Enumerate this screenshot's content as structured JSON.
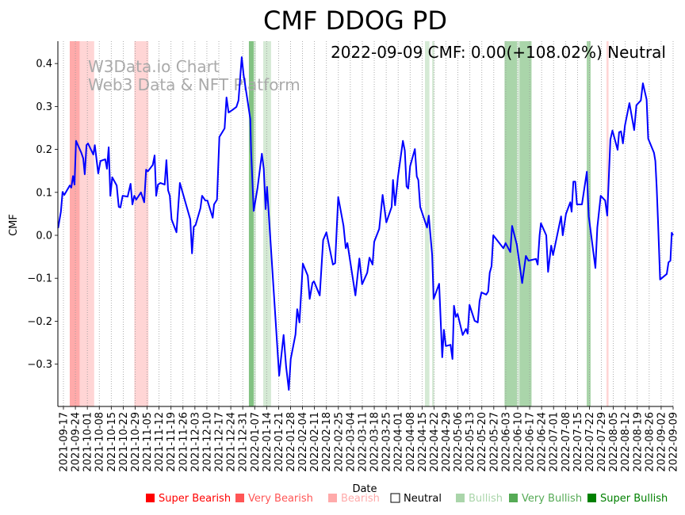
{
  "chart_data": {
    "type": "line",
    "title": "CMF DDOG PD",
    "annotation": "2022-09-09 CMF: 0.00(+108.02%) Neutral",
    "watermark": [
      "W3Data.io Chart",
      "Web3 Data & NFT Platform"
    ],
    "xlabel": "Date",
    "ylabel": "CMF",
    "x_unit": "days since 2021-09-17",
    "xlim": [
      -3.25,
      357
    ],
    "ylim": [
      -0.3985,
      0.452
    ],
    "yticks": [
      -0.3,
      -0.2,
      -0.1,
      0.0,
      0.1,
      0.2,
      0.3,
      0.4
    ],
    "ytick_labels": [
      "−0.3",
      "−0.2",
      "−0.1",
      "0.0",
      "0.1",
      "0.2",
      "0.3",
      "0.4"
    ],
    "xtick_labels": [
      "2021-09-17",
      "2021-09-24",
      "2021-10-01",
      "2021-10-08",
      "2021-10-15",
      "2021-10-22",
      "2021-10-29",
      "2021-11-05",
      "2021-11-12",
      "2021-11-19",
      "2021-11-26",
      "2021-12-03",
      "2021-12-10",
      "2021-12-17",
      "2021-12-24",
      "2021-12-31",
      "2022-01-07",
      "2022-01-14",
      "2022-01-21",
      "2022-01-28",
      "2022-02-04",
      "2022-02-11",
      "2022-02-18",
      "2022-02-25",
      "2022-03-04",
      "2022-03-11",
      "2022-03-18",
      "2022-03-25",
      "2022-04-01",
      "2022-04-08",
      "2022-04-15",
      "2022-04-22",
      "2022-04-29",
      "2022-05-06",
      "2022-05-13",
      "2022-05-20",
      "2022-05-27",
      "2022-06-03",
      "2022-06-10",
      "2022-06-17",
      "2022-06-24",
      "2022-07-01",
      "2022-07-08",
      "2022-07-15",
      "2022-07-22",
      "2022-07-29",
      "2022-08-05",
      "2022-08-12",
      "2022-08-19",
      "2022-08-26",
      "2022-09-02",
      "2022-09-09"
    ],
    "grid": "vertical dotted",
    "line_color": "#0000ff",
    "series": [
      {
        "name": "CMF",
        "points": [
          [
            -3.1,
            0.017
          ],
          [
            -1.5,
            0.055
          ],
          [
            -0.5,
            0.101
          ],
          [
            0.5,
            0.094
          ],
          [
            3.7,
            0.116
          ],
          [
            4.6,
            0.111
          ],
          [
            5.6,
            0.138
          ],
          [
            6.5,
            0.118
          ],
          [
            7.4,
            0.22
          ],
          [
            10.5,
            0.192
          ],
          [
            11.6,
            0.179
          ],
          [
            12.5,
            0.142
          ],
          [
            13.5,
            0.21
          ],
          [
            14.4,
            0.214
          ],
          [
            17.5,
            0.188
          ],
          [
            18.4,
            0.21
          ],
          [
            20.4,
            0.144
          ],
          [
            21.7,
            0.173
          ],
          [
            24.5,
            0.177
          ],
          [
            25.5,
            0.155
          ],
          [
            26.5,
            0.205
          ],
          [
            27.5,
            0.092
          ],
          [
            28.6,
            0.135
          ],
          [
            31.2,
            0.116
          ],
          [
            32.4,
            0.066
          ],
          [
            33.4,
            0.065
          ],
          [
            34.7,
            0.092
          ],
          [
            37.6,
            0.09
          ],
          [
            39.3,
            0.12
          ],
          [
            40.4,
            0.072
          ],
          [
            41.5,
            0.092
          ],
          [
            42.6,
            0.083
          ],
          [
            45.4,
            0.1
          ],
          [
            47.3,
            0.077
          ],
          [
            48.4,
            0.153
          ],
          [
            49.5,
            0.149
          ],
          [
            52.3,
            0.164
          ],
          [
            53.4,
            0.186
          ],
          [
            54.3,
            0.092
          ],
          [
            55.4,
            0.118
          ],
          [
            56.8,
            0.122
          ],
          [
            59.3,
            0.118
          ],
          [
            60.3,
            0.175
          ],
          [
            61.3,
            0.105
          ],
          [
            62.3,
            0.092
          ],
          [
            63.3,
            0.037
          ],
          [
            66.2,
            0.007
          ],
          [
            68.2,
            0.122
          ],
          [
            74.3,
            0.037
          ],
          [
            75.3,
            -0.042
          ],
          [
            76.3,
            0.02
          ],
          [
            77.4,
            0.024
          ],
          [
            80.2,
            0.063
          ],
          [
            81.2,
            0.092
          ],
          [
            83.1,
            0.081
          ],
          [
            84.3,
            0.081
          ],
          [
            87.4,
            0.041
          ],
          [
            88.2,
            0.072
          ],
          [
            89.9,
            0.083
          ],
          [
            91.3,
            0.229
          ],
          [
            94.4,
            0.249
          ],
          [
            95.5,
            0.321
          ],
          [
            96.7,
            0.286
          ],
          [
            99,
            0.292
          ],
          [
            101.3,
            0.299
          ],
          [
            102.5,
            0.314
          ],
          [
            104.4,
            0.415
          ],
          [
            105.5,
            0.373
          ],
          [
            107.8,
            0.314
          ],
          [
            109.4,
            0.271
          ],
          [
            109.9,
            0.197
          ],
          [
            111.4,
            0.057
          ],
          [
            113.7,
            0.111
          ],
          [
            116.2,
            0.19
          ],
          [
            117.3,
            0.155
          ],
          [
            118.4,
            0.061
          ],
          [
            119.2,
            0.113
          ],
          [
            126.3,
            -0.327
          ],
          [
            128.9,
            -0.232
          ],
          [
            130.4,
            -0.306
          ],
          [
            132,
            -0.36
          ],
          [
            133.1,
            -0.288
          ],
          [
            135.9,
            -0.231
          ],
          [
            136.9,
            -0.172
          ],
          [
            138.2,
            -0.203
          ],
          [
            140.2,
            -0.066
          ],
          [
            143.1,
            -0.094
          ],
          [
            144.2,
            -0.148
          ],
          [
            145.8,
            -0.111
          ],
          [
            146.7,
            -0.107
          ],
          [
            150.1,
            -0.14
          ],
          [
            152.1,
            -0.011
          ],
          [
            154,
            0.007
          ],
          [
            157.8,
            -0.068
          ],
          [
            159.1,
            -0.065
          ],
          [
            160.9,
            0.089
          ],
          [
            164,
            0.022
          ],
          [
            165.3,
            -0.03
          ],
          [
            166.3,
            -0.018
          ],
          [
            171,
            -0.14
          ],
          [
            173.3,
            -0.054
          ],
          [
            174.9,
            -0.114
          ],
          [
            177.9,
            -0.087
          ],
          [
            179.2,
            -0.052
          ],
          [
            181,
            -0.068
          ],
          [
            182,
            -0.015
          ],
          [
            184.9,
            0.015
          ],
          [
            186.9,
            0.094
          ],
          [
            189.1,
            0.03
          ],
          [
            192.2,
            0.066
          ],
          [
            193,
            0.129
          ],
          [
            194.2,
            0.07
          ],
          [
            195.9,
            0.137
          ],
          [
            198.8,
            0.22
          ],
          [
            199.9,
            0.197
          ],
          [
            200.9,
            0.114
          ],
          [
            201.9,
            0.109
          ],
          [
            203,
            0.161
          ],
          [
            205.8,
            0.201
          ],
          [
            206.9,
            0.137
          ],
          [
            207.8,
            0.129
          ],
          [
            208.9,
            0.066
          ],
          [
            212.9,
            0.018
          ],
          [
            213.9,
            0.046
          ],
          [
            215.9,
            -0.046
          ],
          [
            216.8,
            -0.148
          ],
          [
            220,
            -0.113
          ],
          [
            221.8,
            -0.284
          ],
          [
            222.8,
            -0.22
          ],
          [
            223.9,
            -0.258
          ],
          [
            226.7,
            -0.255
          ],
          [
            227.8,
            -0.288
          ],
          [
            228.7,
            -0.164
          ],
          [
            229.8,
            -0.19
          ],
          [
            230.8,
            -0.183
          ],
          [
            233.8,
            -0.232
          ],
          [
            235.7,
            -0.218
          ],
          [
            236.7,
            -0.229
          ],
          [
            237.8,
            -0.162
          ],
          [
            240.8,
            -0.199
          ],
          [
            242.6,
            -0.203
          ],
          [
            243.7,
            -0.153
          ],
          [
            244.8,
            -0.133
          ],
          [
            247.6,
            -0.138
          ],
          [
            248.7,
            -0.131
          ],
          [
            249.6,
            -0.087
          ],
          [
            250.7,
            -0.072
          ],
          [
            251.7,
            0.0
          ],
          [
            257.6,
            -0.03
          ],
          [
            258.9,
            -0.018
          ],
          [
            261.7,
            -0.039
          ],
          [
            262.7,
            0.022
          ],
          [
            265.5,
            -0.022
          ],
          [
            268.6,
            -0.111
          ],
          [
            270.8,
            -0.048
          ],
          [
            272.3,
            -0.059
          ],
          [
            276.7,
            -0.055
          ],
          [
            277.7,
            -0.068
          ],
          [
            278.8,
            0.0
          ],
          [
            279.6,
            0.028
          ],
          [
            282.7,
            0.0
          ],
          [
            283.8,
            -0.085
          ],
          [
            285.6,
            -0.024
          ],
          [
            286.7,
            -0.046
          ],
          [
            291.4,
            0.044
          ],
          [
            292.4,
            0.0
          ],
          [
            294.3,
            0.05
          ],
          [
            296.8,
            0.077
          ],
          [
            297.6,
            0.055
          ],
          [
            298.6,
            0.125
          ],
          [
            299.7,
            0.125
          ],
          [
            300.7,
            0.072
          ],
          [
            303.6,
            0.072
          ],
          [
            306.5,
            0.148
          ],
          [
            307.6,
            0.044
          ],
          [
            311.5,
            -0.076
          ],
          [
            312.6,
            0.018
          ],
          [
            314.6,
            0.092
          ],
          [
            317.2,
            0.081
          ],
          [
            318.4,
            0.046
          ],
          [
            320.3,
            0.223
          ],
          [
            321.5,
            0.244
          ],
          [
            324.5,
            0.199
          ],
          [
            325.4,
            0.24
          ],
          [
            326.5,
            0.242
          ],
          [
            327.6,
            0.214
          ],
          [
            328.8,
            0.256
          ],
          [
            331.4,
            0.308
          ],
          [
            334.2,
            0.245
          ],
          [
            335.5,
            0.303
          ],
          [
            338.1,
            0.314
          ],
          [
            339.3,
            0.354
          ],
          [
            341.5,
            0.316
          ],
          [
            342.4,
            0.225
          ],
          [
            345.8,
            0.192
          ],
          [
            346.6,
            0.173
          ],
          [
            347.4,
            0.111
          ],
          [
            348.2,
            0.031
          ],
          [
            349.4,
            -0.103
          ],
          [
            353.3,
            -0.09
          ],
          [
            354.3,
            -0.063
          ],
          [
            355.4,
            -0.059
          ],
          [
            356.2,
            0.006
          ],
          [
            357,
            0.0
          ]
        ]
      }
    ],
    "signal_bands": [
      {
        "start": 3.7,
        "end": 9.6,
        "signal": "very_bearish"
      },
      {
        "start": 9.6,
        "end": 18,
        "signal": "bearish"
      },
      {
        "start": 41.5,
        "end": 49.8,
        "signal": "bearish"
      },
      {
        "start": 108.6,
        "end": 111.4,
        "signal": "very_bullish"
      },
      {
        "start": 111.4,
        "end": 112.7,
        "signal": "bullish"
      },
      {
        "start": 117,
        "end": 121.6,
        "signal": "bullish"
      },
      {
        "start": 211.7,
        "end": 214.3,
        "signal": "bullish"
      },
      {
        "start": 215.9,
        "end": 217.1,
        "signal": "bullish"
      },
      {
        "start": 258.3,
        "end": 265.6,
        "signal": "bullish_strong"
      },
      {
        "start": 265.6,
        "end": 267.1,
        "signal": "bullish"
      },
      {
        "start": 267.1,
        "end": 274.1,
        "signal": "bullish_strong"
      },
      {
        "start": 306.4,
        "end": 308.7,
        "signal": "bullish_strong"
      },
      {
        "start": 318,
        "end": 319.2,
        "signal": "bearish"
      }
    ],
    "band_colors": {
      "very_bearish": "#ffaaaa",
      "bearish": "#ffd5d5",
      "very_bullish": "#82c282",
      "bullish_strong": "#aad5aa",
      "bullish": "#d5ead5"
    },
    "legend": [
      {
        "label": "Super Bearish",
        "color": "#ff0000",
        "text_color": "#ff0000"
      },
      {
        "label": "Very Bearish",
        "color": "#ff5555",
        "text_color": "#ff5555"
      },
      {
        "label": "Bearish",
        "color": "#ffaaaa",
        "text_color": "#ffaaaa"
      },
      {
        "label": "Neutral",
        "color": "#ffffff",
        "text_color": "#000000"
      },
      {
        "label": "Bullish",
        "color": "#aad5aa",
        "text_color": "#aad5aa"
      },
      {
        "label": "Very Bullish",
        "color": "#55aa55",
        "text_color": "#55aa55"
      },
      {
        "label": "Super Bullish",
        "color": "#008000",
        "text_color": "#008000"
      }
    ],
    "legend_placement": "bottom"
  }
}
